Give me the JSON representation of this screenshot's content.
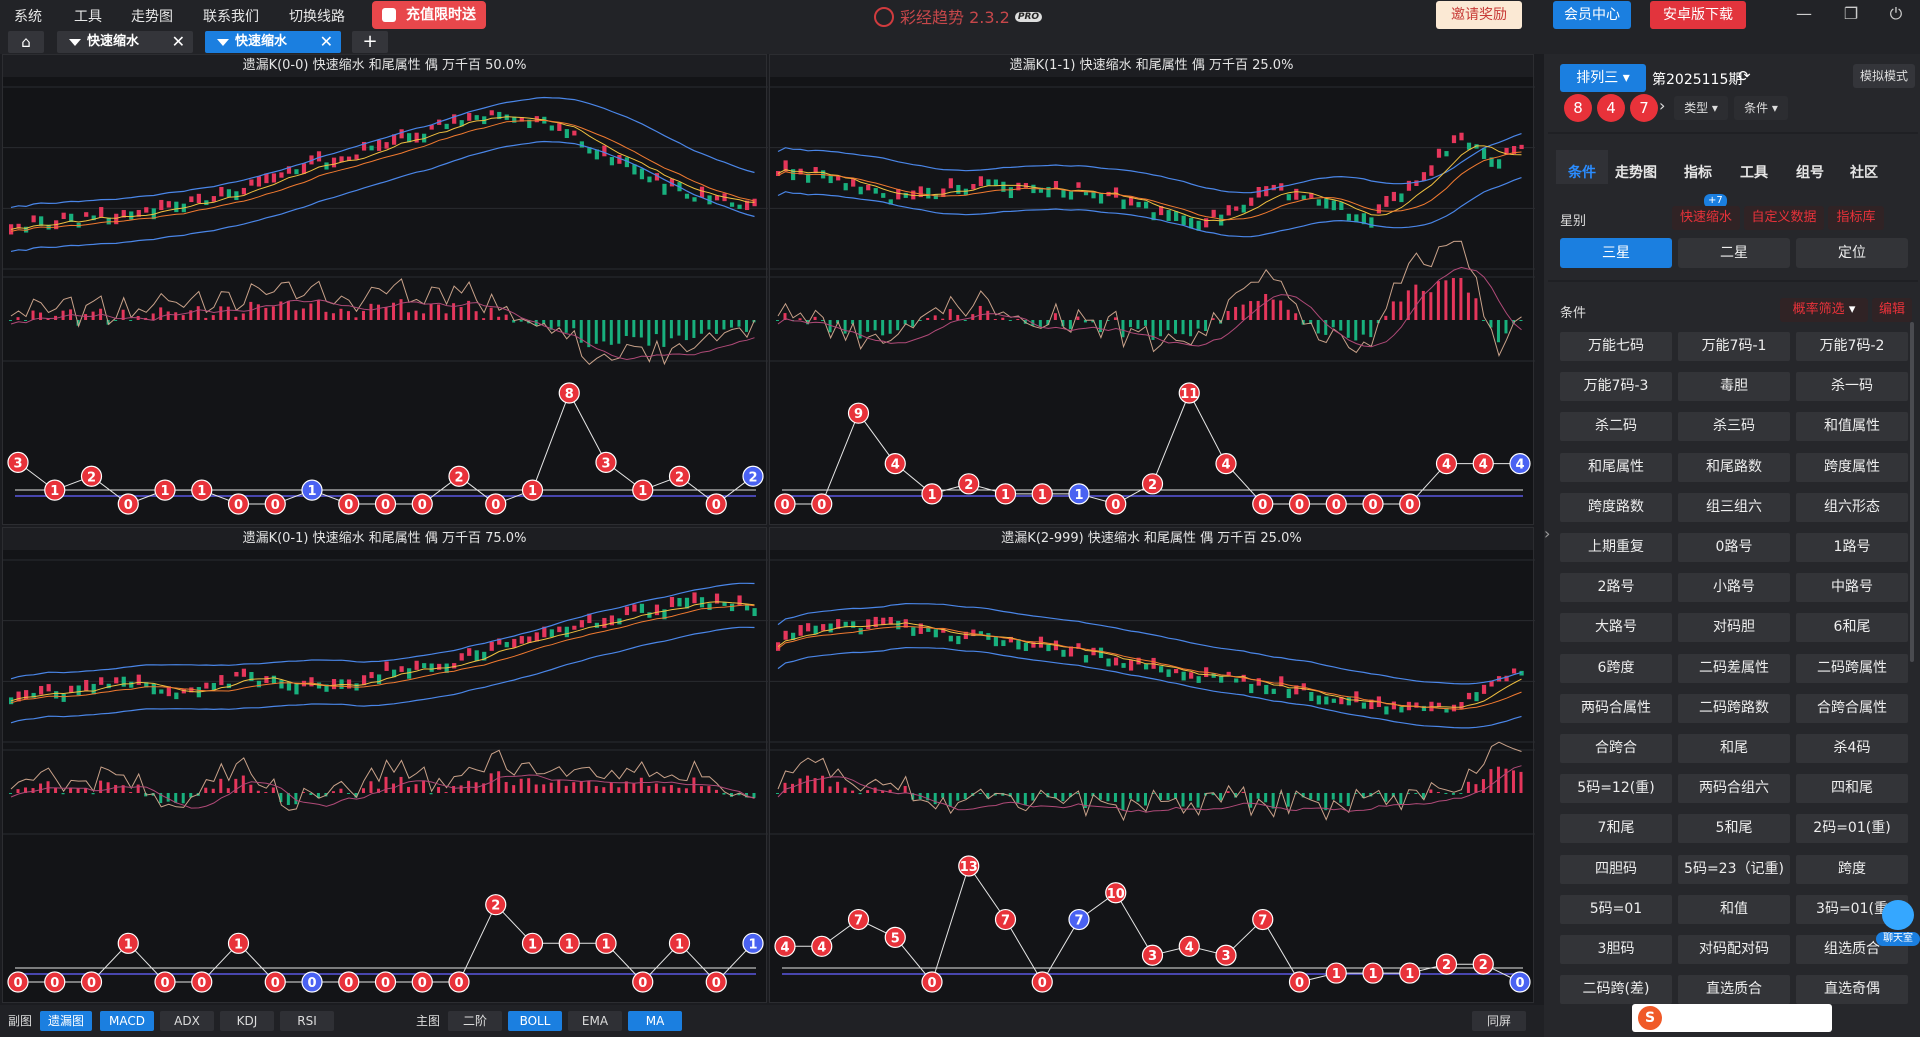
{
  "menu": [
    "系统",
    "工具",
    "走势图",
    "联系我们",
    "切换线路"
  ],
  "promo_label": "充值限时送",
  "app_title": "彩经趋势 2.3.2",
  "app_badge": "PRO",
  "top_buttons": {
    "invite": "邀请奖励",
    "member": "会员中心",
    "android": "安卓版下载"
  },
  "tabs": [
    {
      "label": "快速缩水",
      "active": false
    },
    {
      "label": "快速缩水",
      "active": true
    }
  ],
  "colors": {
    "accent": "#1b7fe0",
    "red": "#e8323a",
    "blue": "#4a62f2",
    "bull": "#e5365b",
    "bear": "#18b07d"
  },
  "panels": [
    {
      "title": "遗漏K(0-0) 快速缩水 和尾属性 偶 万千百 50.0%",
      "trend": [
        0.8,
        0.78,
        0.76,
        0.74,
        0.72,
        0.7,
        0.66,
        0.6,
        0.52,
        0.45,
        0.4,
        0.36,
        0.3,
        0.24,
        0.18,
        0.14,
        0.12,
        0.16,
        0.24,
        0.34,
        0.45,
        0.54,
        0.6,
        0.64,
        0.66
      ],
      "omissions": [
        3,
        1,
        2,
        0,
        1,
        1,
        0,
        0,
        1,
        0,
        0,
        0,
        2,
        0,
        1,
        8,
        3,
        1,
        2,
        0,
        2
      ],
      "omission_colors": "rrrrrrrrbrrrrrrrrrrrb"
    },
    {
      "title": "遗漏K(1-1) 快速缩水 和尾属性 偶 万千百 25.0%",
      "trend": [
        0.45,
        0.47,
        0.52,
        0.58,
        0.62,
        0.6,
        0.56,
        0.55,
        0.56,
        0.58,
        0.57,
        0.6,
        0.66,
        0.74,
        0.78,
        0.72,
        0.62,
        0.58,
        0.6,
        0.7,
        0.74,
        0.6,
        0.42,
        0.24,
        0.4,
        0.34
      ],
      "omissions": [
        0,
        0,
        9,
        4,
        1,
        2,
        1,
        1,
        1,
        0,
        2,
        11,
        4,
        0,
        0,
        0,
        0,
        0,
        4,
        4,
        4
      ],
      "omission_colors": "rrrrrrrrbrrrrrrrrrrrb"
    },
    {
      "title": "遗漏K(0-1) 快速缩水 和尾属性 偶 万千百 75.0%",
      "trend": [
        0.78,
        0.74,
        0.76,
        0.7,
        0.68,
        0.72,
        0.76,
        0.7,
        0.66,
        0.7,
        0.72,
        0.74,
        0.66,
        0.6,
        0.62,
        0.56,
        0.5,
        0.44,
        0.4,
        0.36,
        0.3,
        0.26,
        0.24,
        0.2,
        0.18,
        0.24
      ],
      "omissions": [
        0,
        0,
        0,
        1,
        0,
        0,
        1,
        0,
        0,
        0,
        0,
        0,
        0,
        2,
        1,
        1,
        1,
        0,
        1,
        0,
        1
      ],
      "omission_colors": "rrrrrrrrbrrrrrrrrrrrb"
    },
    {
      "title": "遗漏K(2-999) 快速缩水 和尾属性 偶 万千百 25.0%",
      "trend": [
        0.44,
        0.38,
        0.36,
        0.34,
        0.34,
        0.38,
        0.4,
        0.42,
        0.46,
        0.48,
        0.5,
        0.54,
        0.56,
        0.6,
        0.64,
        0.66,
        0.7,
        0.72,
        0.76,
        0.8,
        0.82,
        0.86,
        0.88,
        0.82,
        0.72,
        0.64
      ],
      "omissions": [
        4,
        4,
        7,
        5,
        0,
        13,
        7,
        0,
        7,
        10,
        3,
        4,
        3,
        7,
        0,
        1,
        1,
        1,
        2,
        2,
        0
      ],
      "omission_colors": "rrrrrrrrbrrrrrrrrrrrb"
    }
  ],
  "bottom": {
    "sub_label": "副图",
    "sub_tabs": [
      {
        "label": "遗漏图",
        "on": true
      },
      {
        "label": "MACD",
        "on": true
      },
      {
        "label": "ADX",
        "on": false
      },
      {
        "label": "KDJ",
        "on": false
      },
      {
        "label": "RSI",
        "on": false
      }
    ],
    "main_label": "主图",
    "main_tabs": [
      {
        "label": "二阶",
        "on": false
      },
      {
        "label": "BOLL",
        "on": true
      },
      {
        "label": "EMA",
        "on": false
      },
      {
        "label": "MA",
        "on": true
      }
    ],
    "fullscreen": "同屏"
  },
  "side": {
    "lottery": "排列三",
    "issue": "第2025115期",
    "sim_mode": "模拟模式",
    "draw_numbers": [
      "8",
      "4",
      "7"
    ],
    "filter_type": "类型",
    "filter_cond": "条件",
    "nav_tabs": [
      "条件",
      "走势图",
      "指标",
      "工具",
      "组号",
      "社区"
    ],
    "star_label": "星别",
    "badge_count": "+7",
    "quick_tags": [
      "快速缩水",
      "自定义数据",
      "指标库"
    ],
    "star_buttons": [
      "三星",
      "二星",
      "定位"
    ],
    "cond_label": "条件",
    "prob_filter": "概率筛选",
    "edit_label": "编辑",
    "conditions": [
      "万能七码",
      "万能7码-1",
      "万能7码-2",
      "万能7码-3",
      "毒胆",
      "杀一码",
      "杀二码",
      "杀三码",
      "和值属性",
      "和尾属性",
      "和尾路数",
      "跨度属性",
      "跨度路数",
      "组三组六",
      "组六形态",
      "上期重复",
      "0路号",
      "1路号",
      "2路号",
      "小路号",
      "中路号",
      "大路号",
      "对码胆",
      "6和尾",
      "6跨度",
      "二码差属性",
      "二码跨属性",
      "两码合属性",
      "二码跨路数",
      "合跨合属性",
      "合跨合",
      "和尾",
      "杀4码",
      "5码=12(重)",
      "两码合组六",
      "四和尾",
      "7和尾",
      "5和尾",
      "2码=01(重)",
      "四胆码",
      "5码=23（记重)",
      "跨度",
      "5码=01",
      "和值",
      "3码=01(重",
      "3胆码",
      "对码配对码",
      "组选质合",
      "二码跨(差)",
      "直选质合",
      "直选奇偶"
    ],
    "chat_label": "聊天室"
  }
}
